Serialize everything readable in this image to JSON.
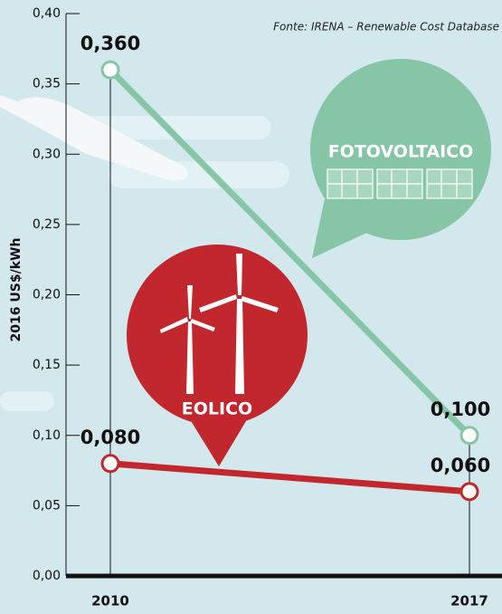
{
  "chart_data": {
    "type": "line",
    "source": "Fonte: IRENA – Renewable Cost Database",
    "ylabel": "2016 US$/kWh",
    "categories": [
      "2010",
      "2017"
    ],
    "series": [
      {
        "name": "FOTOVOLTAICO",
        "color": "#86c5a5",
        "values": [
          0.36,
          0.1
        ],
        "value_labels": [
          "0,360",
          "0,100"
        ]
      },
      {
        "name": "EOLICO",
        "color": "#c1272d",
        "values": [
          0.08,
          0.06
        ],
        "value_labels": [
          "0,080",
          "0,060"
        ]
      }
    ],
    "ylim": [
      0,
      0.4
    ],
    "yticks": [
      {
        "value": 0,
        "label": "0,00"
      },
      {
        "value": 0.05,
        "label": "0,05"
      },
      {
        "value": 0.1,
        "label": "0,10"
      },
      {
        "value": 0.15,
        "label": "0,15"
      },
      {
        "value": 0.2,
        "label": "0,20"
      },
      {
        "value": 0.25,
        "label": "0,25"
      },
      {
        "value": 0.3,
        "label": "0,30"
      },
      {
        "value": 0.35,
        "label": "0,35"
      },
      {
        "value": 0.4,
        "label": "0,40"
      }
    ]
  }
}
